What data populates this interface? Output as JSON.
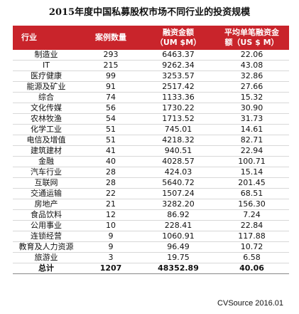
{
  "title": "2015年度中国私募股权市场不同行业的投资规模",
  "headers": {
    "industry": "行业",
    "cases": "案例数量",
    "amount_line1": "融资金额",
    "amount_line2": "（UM $M）",
    "avg_line1": "平均单笔融资金",
    "avg_line2": "额（US $ M）"
  },
  "rows": [
    {
      "industry": "制造业",
      "cases": "293",
      "amount": "6463.37",
      "avg": "22.06"
    },
    {
      "industry": "IT",
      "cases": "215",
      "amount": "9262.34",
      "avg": "43.08"
    },
    {
      "industry": "医疗健康",
      "cases": "99",
      "amount": "3253.57",
      "avg": "32.86"
    },
    {
      "industry": "能源及矿业",
      "cases": "91",
      "amount": "2517.42",
      "avg": "27.66"
    },
    {
      "industry": "综合",
      "cases": "74",
      "amount": "1133.36",
      "avg": "15.32"
    },
    {
      "industry": "文化传媒",
      "cases": "56",
      "amount": "1730.22",
      "avg": "30.90"
    },
    {
      "industry": "农林牧渔",
      "cases": "54",
      "amount": "1713.52",
      "avg": "31.73"
    },
    {
      "industry": "化学工业",
      "cases": "51",
      "amount": "745.01",
      "avg": "14.61"
    },
    {
      "industry": "电信及增值",
      "cases": "51",
      "amount": "4218.32",
      "avg": "82.71"
    },
    {
      "industry": "建筑建材",
      "cases": "41",
      "amount": "940.51",
      "avg": "22.94"
    },
    {
      "industry": "金融",
      "cases": "40",
      "amount": "4028.57",
      "avg": "100.71"
    },
    {
      "industry": "汽车行业",
      "cases": "28",
      "amount": "424.03",
      "avg": "15.14"
    },
    {
      "industry": "互联网",
      "cases": "28",
      "amount": "5640.72",
      "avg": "201.45"
    },
    {
      "industry": "交通运输",
      "cases": "22",
      "amount": "1507.24",
      "avg": "68.51"
    },
    {
      "industry": "房地产",
      "cases": "21",
      "amount": "3282.20",
      "avg": "156.30"
    },
    {
      "industry": "食品饮料",
      "cases": "12",
      "amount": "86.92",
      "avg": "7.24"
    },
    {
      "industry": "公用事业",
      "cases": "10",
      "amount": "228.41",
      "avg": "22.84"
    },
    {
      "industry": "连锁经营",
      "cases": "9",
      "amount": "1060.91",
      "avg": "117.88"
    },
    {
      "industry": "教育及人力资源",
      "cases": "9",
      "amount": "96.49",
      "avg": "10.72"
    },
    {
      "industry": "旅游业",
      "cases": "3",
      "amount": "19.75",
      "avg": "6.58"
    }
  ],
  "total": {
    "industry": "总计",
    "cases": "1207",
    "amount": "48352.89",
    "avg": "40.06"
  },
  "source": "CVSource 2016.01",
  "colors": {
    "header_bg": "#c9242b",
    "header_text": "#ffffff"
  }
}
